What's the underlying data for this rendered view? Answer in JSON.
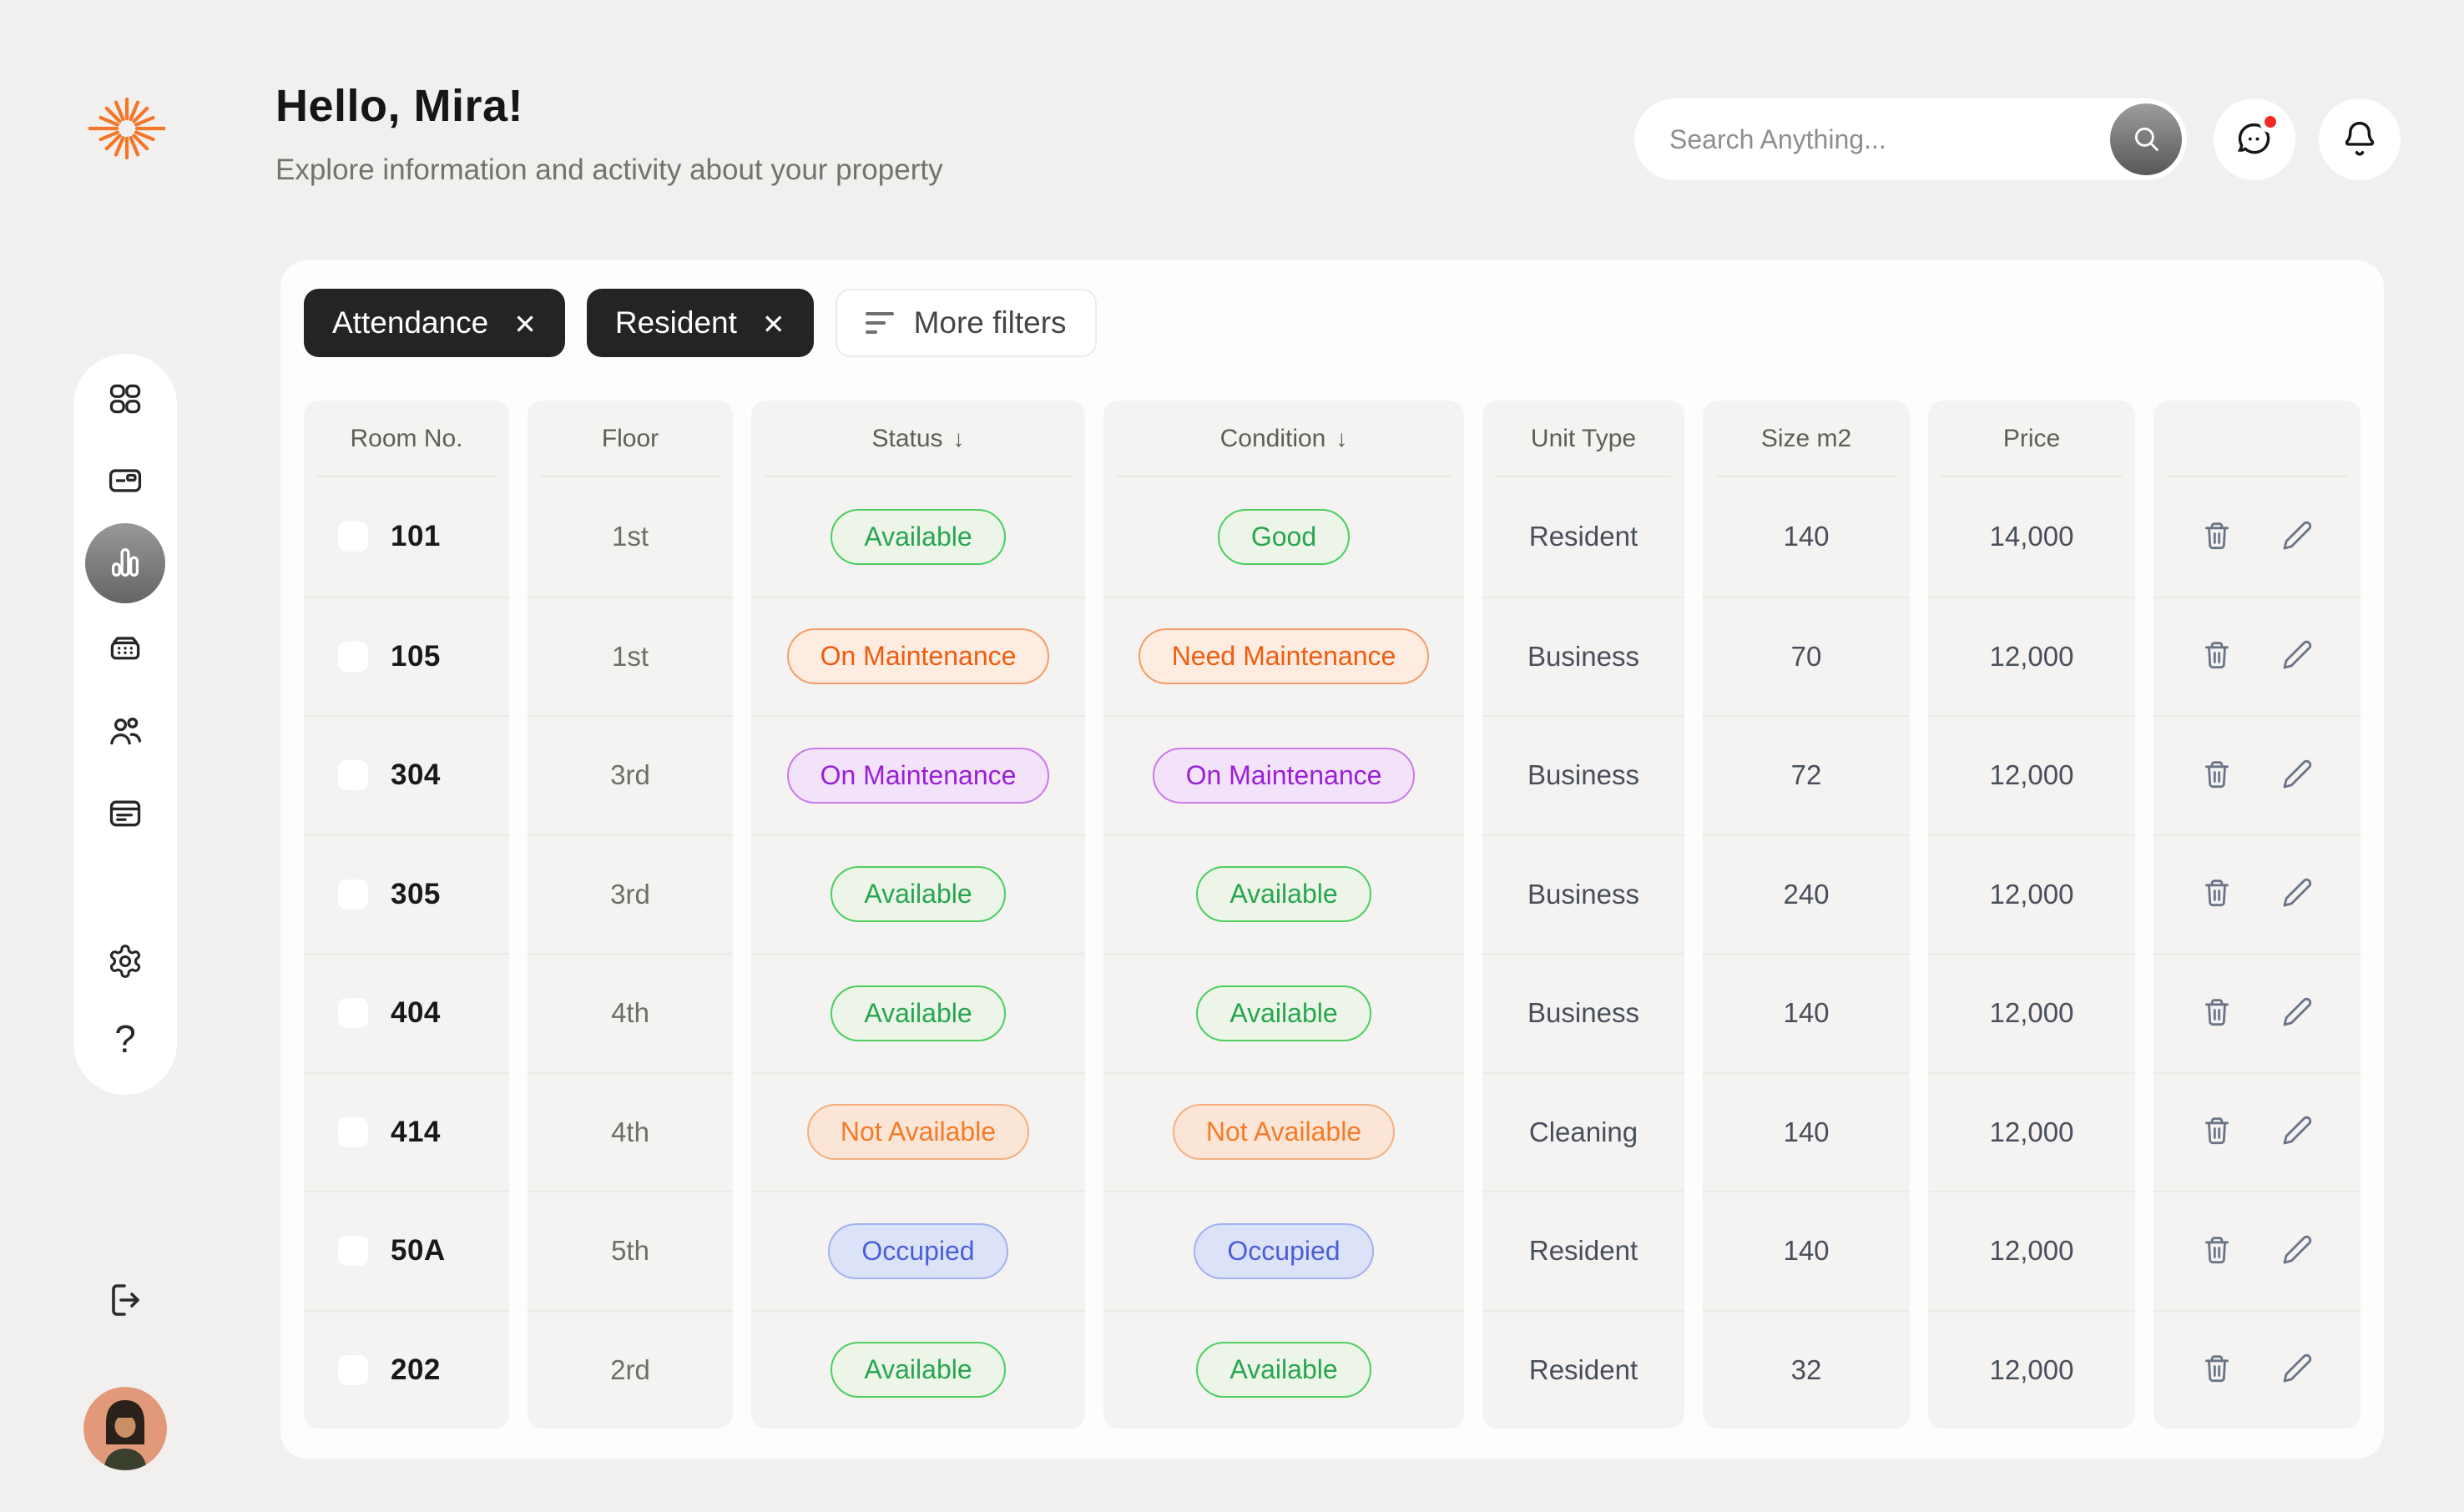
{
  "header": {
    "greeting": "Hello, Mira!",
    "subtitle": "Explore information and activity about your property",
    "search": {
      "placeholder": "Search Anything..."
    },
    "actions": [
      {
        "icon": "chat-icon",
        "has_notification_dot": true
      },
      {
        "icon": "bell-icon",
        "has_notification_dot": false
      }
    ]
  },
  "sidebar": {
    "items": [
      {
        "icon": "dashboard-grid-icon",
        "active": false
      },
      {
        "icon": "card-icon",
        "active": false
      },
      {
        "icon": "bar-chart-icon",
        "active": true
      },
      {
        "icon": "building-icon",
        "active": false
      },
      {
        "icon": "users-icon",
        "active": false
      },
      {
        "icon": "calendar-icon",
        "active": false
      },
      {
        "icon": "settings-gear-icon",
        "active": false
      },
      {
        "icon": "help-icon",
        "active": false
      }
    ],
    "help_glyph": "?",
    "logout_icon": "logout-icon",
    "avatar": "user-avatar"
  },
  "filters": {
    "chips": [
      {
        "label": "Attendance",
        "close_glyph": "✕"
      },
      {
        "label": "Resident",
        "close_glyph": "✕"
      }
    ],
    "more_label": "More filters"
  },
  "table": {
    "columns": [
      {
        "key": "room",
        "label": "Room No.",
        "sortable": false
      },
      {
        "key": "floor",
        "label": "Floor",
        "sortable": false
      },
      {
        "key": "status",
        "label": "Status",
        "sortable": true
      },
      {
        "key": "condition",
        "label": "Condition",
        "sortable": true
      },
      {
        "key": "unit_type",
        "label": "Unit Type",
        "sortable": false
      },
      {
        "key": "size",
        "label": "Size m2",
        "sortable": false
      },
      {
        "key": "price",
        "label": "Price",
        "sortable": false
      },
      {
        "key": "actions",
        "label": "",
        "sortable": false
      }
    ],
    "sort_arrow_glyph": "↓",
    "rows": [
      {
        "room": "101",
        "floor": "1st",
        "status": {
          "label": "Available",
          "variant": "green"
        },
        "condition": {
          "label": "Good",
          "variant": "green"
        },
        "unit_type": "Resident",
        "size": "140",
        "price": "14,000"
      },
      {
        "room": "105",
        "floor": "1st",
        "status": {
          "label": "On Maintenance",
          "variant": "orange"
        },
        "condition": {
          "label": "Need Maintenance",
          "variant": "orange"
        },
        "unit_type": "Business",
        "size": "70",
        "price": "12,000"
      },
      {
        "room": "304",
        "floor": "3rd",
        "status": {
          "label": "On Maintenance",
          "variant": "purple"
        },
        "condition": {
          "label": "On Maintenance",
          "variant": "purple"
        },
        "unit_type": "Business",
        "size": "72",
        "price": "12,000"
      },
      {
        "room": "305",
        "floor": "3rd",
        "status": {
          "label": "Available",
          "variant": "green"
        },
        "condition": {
          "label": "Available",
          "variant": "green"
        },
        "unit_type": "Business",
        "size": "240",
        "price": "12,000"
      },
      {
        "room": "404",
        "floor": "4th",
        "status": {
          "label": "Available",
          "variant": "green"
        },
        "condition": {
          "label": "Available",
          "variant": "green"
        },
        "unit_type": "Business",
        "size": "140",
        "price": "12,000"
      },
      {
        "room": "414",
        "floor": "4th",
        "status": {
          "label": "Not Available",
          "variant": "orange-light"
        },
        "condition": {
          "label": "Not Available",
          "variant": "orange-light"
        },
        "unit_type": "Cleaning",
        "size": "140",
        "price": "12,000"
      },
      {
        "room": "50A",
        "floor": "5th",
        "status": {
          "label": "Occupied",
          "variant": "blue"
        },
        "condition": {
          "label": "Occupied",
          "variant": "blue"
        },
        "unit_type": "Resident",
        "size": "140",
        "price": "12,000"
      },
      {
        "room": "202",
        "floor": "2rd",
        "status": {
          "label": "Available",
          "variant": "green"
        },
        "condition": {
          "label": "Available",
          "variant": "green"
        },
        "unit_type": "Resident",
        "size": "32",
        "price": "12,000"
      }
    ],
    "row_action_icons": [
      "trash-icon",
      "edit-pencil-icon"
    ]
  },
  "colors": {
    "accent": "#f4762a",
    "alert_dot": "#f22c24",
    "chip_bg": "#242424",
    "page_bg": "#f1f0ee",
    "pills": {
      "green": {
        "text": "#28a550",
        "border": "#4ccf5f",
        "bg": "#ecf5e7"
      },
      "orange": {
        "text": "#f05c10",
        "border": "#f49d6b",
        "bg": "#fdecdf"
      },
      "orange-light": {
        "text": "#f57b28",
        "border": "#f3b183",
        "bg": "#fae5d6"
      },
      "purple": {
        "text": "#9b1fd6",
        "border": "#cb7aea",
        "bg": "#f3e3fa"
      },
      "blue": {
        "text": "#4a5fd7",
        "border": "#a3b1ef",
        "bg": "#dce3f8"
      }
    }
  }
}
